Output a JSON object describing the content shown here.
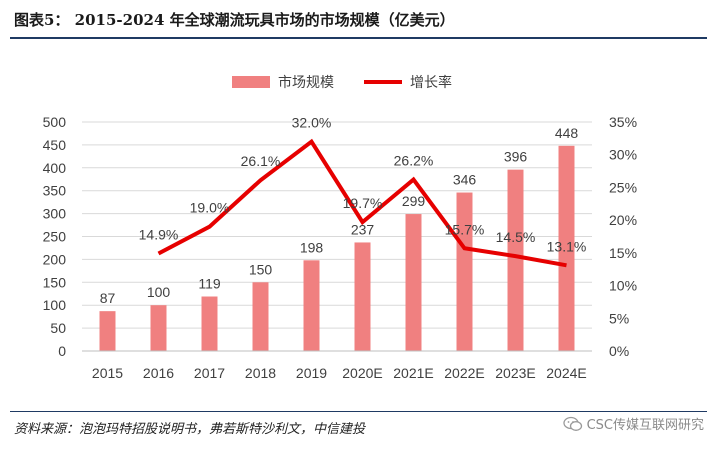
{
  "figure": {
    "title": "图表5： 2015-2024 年全球潮流玩具市场的市场规模（亿美元）",
    "source": "资料来源：泡泡玛特招股说明书，弗若斯特沙利文，中信建投",
    "watermark": "CSC传媒互联网研究"
  },
  "chart_data": {
    "type": "bar+line",
    "categories": [
      "2015",
      "2016",
      "2017",
      "2018",
      "2019",
      "2020E",
      "2021E",
      "2022E",
      "2023E",
      "2024E"
    ],
    "series": [
      {
        "name": "市场规模",
        "type": "bar",
        "axis": "left",
        "color": "#f08080",
        "values": [
          87,
          100,
          119,
          150,
          198,
          237,
          299,
          346,
          396,
          448
        ],
        "labels": [
          "87",
          "100",
          "119",
          "150",
          "198",
          "237",
          "299",
          "346",
          "396",
          "448"
        ]
      },
      {
        "name": "增长率",
        "type": "line",
        "axis": "right",
        "color": "#e60000",
        "values": [
          null,
          14.9,
          19.0,
          26.1,
          32.0,
          19.7,
          26.2,
          15.7,
          14.5,
          13.1
        ],
        "labels": [
          "",
          "14.9%",
          "19.0%",
          "26.1%",
          "32.0%",
          "19.7%",
          "26.2%",
          "15.7%",
          "14.5%",
          "13.1%"
        ]
      }
    ],
    "y_left": {
      "min": 0,
      "max": 500,
      "ticks": [
        "0",
        "50",
        "100",
        "150",
        "200",
        "250",
        "300",
        "350",
        "400",
        "450",
        "500"
      ]
    },
    "y_right": {
      "min": 0,
      "max": 35,
      "ticks": [
        "0%",
        "5%",
        "10%",
        "15%",
        "20%",
        "25%",
        "30%",
        "35%"
      ]
    },
    "legend": {
      "position": "top-center"
    },
    "grid": true
  }
}
